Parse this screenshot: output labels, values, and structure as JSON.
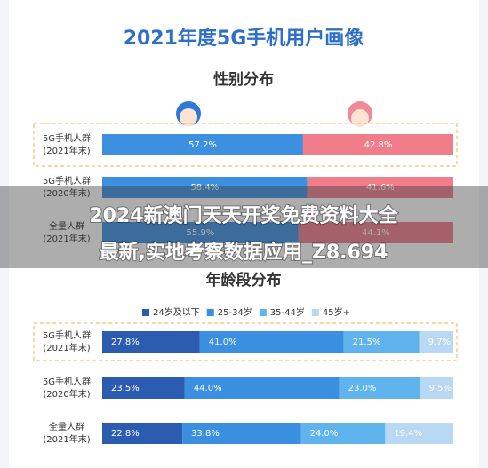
{
  "title": "2021年度5G手机用户画像",
  "overlay_text": [
    "2024新澳门天天开奖免费资料大全",
    "最新,实地考察数据应用_Z8.694"
  ],
  "chart_data": [
    {
      "type": "bar",
      "orientation": "horizontal",
      "stacked": true,
      "title": "性别分布",
      "categories": [
        [
          "5G手机人群",
          "(2021年末)"
        ],
        [
          "5G手机人群",
          "(2020年末)"
        ],
        [
          "全量人群",
          "(2021年末)"
        ]
      ],
      "xlim": [
        0,
        100
      ],
      "series": [
        {
          "color": "#3d8fe0",
          "values": [
            57.2,
            58.4,
            55.9
          ],
          "value_labels": [
            "57.2%",
            "58.4%",
            "55.9%"
          ]
        },
        {
          "color": "#f27d8a",
          "values": [
            42.8,
            41.6,
            44.1
          ],
          "value_labels": [
            "42.8%",
            "41.6%",
            "44.1%"
          ]
        }
      ]
    },
    {
      "type": "bar",
      "orientation": "horizontal",
      "stacked": true,
      "title": "年龄段分布",
      "categories": [
        [
          "5G手机人群",
          "(2021年末)"
        ],
        [
          "5G手机人群",
          "(2020年末)"
        ],
        [
          "全量人群",
          "(2021年末)"
        ]
      ],
      "xlim": [
        0,
        100
      ],
      "legend": "top",
      "series": [
        {
          "name": "24岁及以下",
          "color": "#2c5cb0",
          "values": [
            27.8,
            23.5,
            22.8
          ],
          "value_labels": [
            "27.8%",
            "23.5%",
            "22.8%"
          ]
        },
        {
          "name": "25-34岁",
          "color": "#3a8fe0",
          "values": [
            41.0,
            44.0,
            33.8
          ],
          "value_labels": [
            "41.0%",
            "44.0%",
            "33.8%"
          ]
        },
        {
          "name": "35-44岁",
          "color": "#5fb4ee",
          "values": [
            21.5,
            23.0,
            24.0
          ],
          "value_labels": [
            "21.5%",
            "23.0%",
            "24.0%"
          ]
        },
        {
          "name": "45岁+",
          "color": "#b8d8f4",
          "values": [
            9.7,
            9.5,
            19.4
          ],
          "value_labels": [
            "9.7%",
            "9.5%",
            "19.4%"
          ]
        }
      ]
    }
  ]
}
